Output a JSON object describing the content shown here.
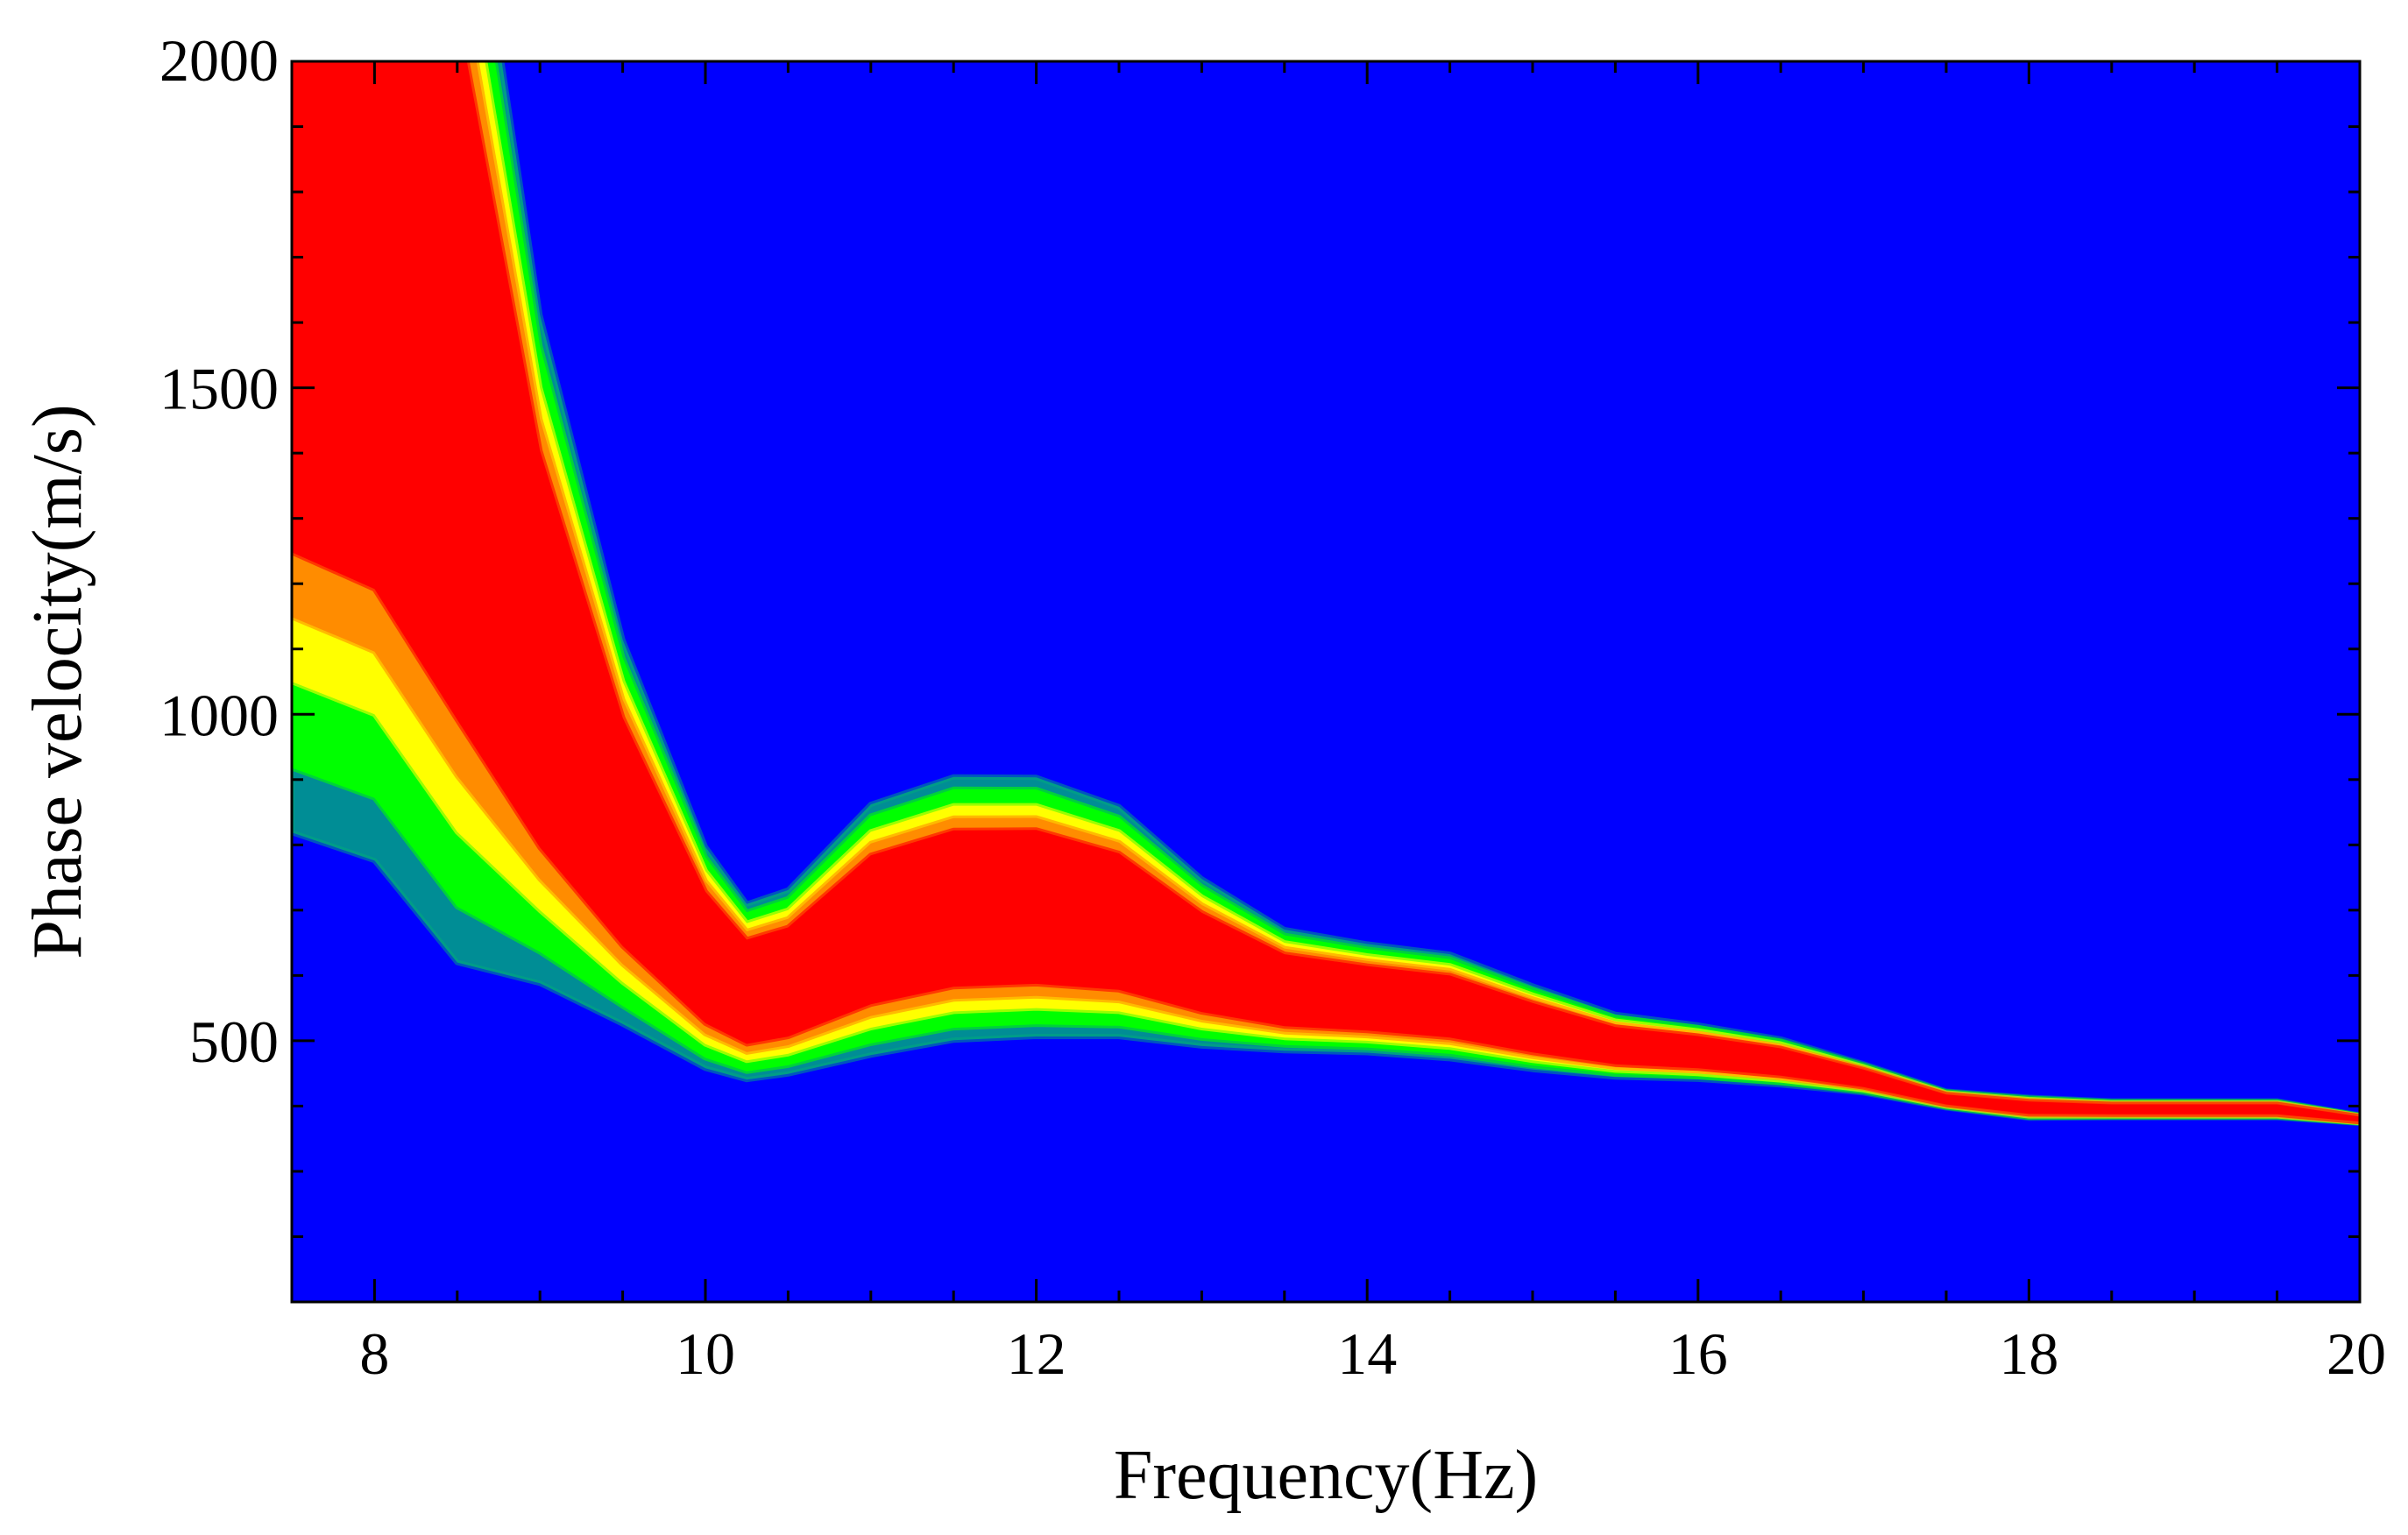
{
  "chart_data": {
    "type": "heatmap",
    "title": "",
    "xlabel": "Frequency(Hz)",
    "ylabel": "Phase velocity(m/s)",
    "xlim": [
      7.5,
      20
    ],
    "ylim": [
      100,
      2000
    ],
    "x_ticks": [
      8,
      10,
      12,
      14,
      16,
      18,
      20
    ],
    "y_ticks": [
      500,
      1000,
      1500,
      2000
    ],
    "x_tick_labels": [
      "8",
      "10",
      "12",
      "14",
      "16",
      "18",
      "20"
    ],
    "y_tick_labels": [
      "500",
      "1000",
      "1500",
      "2000"
    ],
    "grid": false,
    "legend": "none",
    "colormap": [
      "#0000ff",
      "#00ff00",
      "#ffff00",
      "#ff0000"
    ],
    "background_color": "#0000ff",
    "energy_band": {
      "frequency": [
        7.5,
        8,
        8.5,
        9,
        9.5,
        10,
        10.25,
        10.5,
        11,
        11.5,
        12,
        12.5,
        13,
        13.5,
        14,
        14.5,
        15,
        15.5,
        16,
        16.5,
        17,
        17.5,
        18,
        18.5,
        19,
        19.5,
        20
      ],
      "velocity_low": [
        1050,
        1000,
        820,
        700,
        590,
        495,
        470,
        480,
        520,
        545,
        550,
        545,
        520,
        505,
        500,
        490,
        470,
        455,
        450,
        440,
        425,
        400,
        385,
        385,
        385,
        385,
        375
      ],
      "velocity_high": [
        2700,
        2600,
        2250,
        1500,
        1050,
        760,
        680,
        700,
        820,
        860,
        860,
        820,
        720,
        650,
        630,
        615,
        570,
        530,
        515,
        495,
        460,
        420,
        410,
        405,
        405,
        405,
        385
      ]
    }
  }
}
